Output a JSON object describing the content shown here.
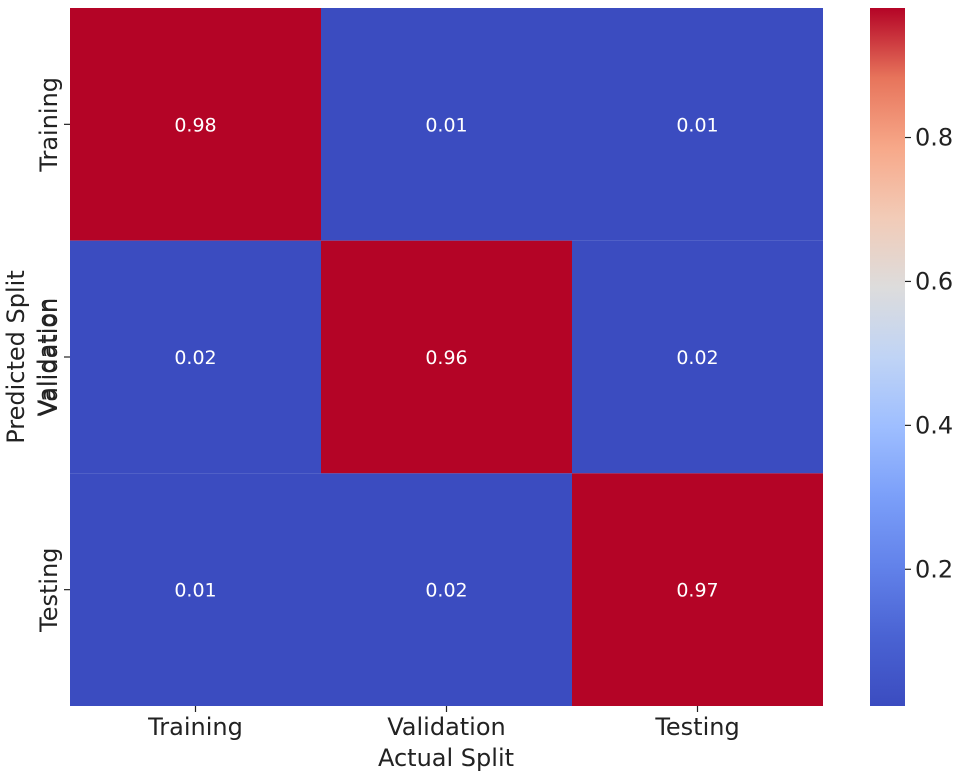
{
  "chart_data": {
    "type": "heatmap",
    "title": "",
    "xlabel": "Actual Split",
    "ylabel_lines": [
      "Predicted Split",
      "Validation"
    ],
    "x_categories": [
      "Training",
      "Validation",
      "Testing"
    ],
    "y_categories": [
      "Training",
      "Validation",
      "Testing"
    ],
    "values": [
      [
        0.98,
        0.01,
        0.01
      ],
      [
        0.02,
        0.96,
        0.02
      ],
      [
        0.01,
        0.02,
        0.97
      ]
    ],
    "value_labels": [
      [
        "0.98",
        "0.01",
        "0.01"
      ],
      [
        "0.02",
        "0.96",
        "0.02"
      ],
      [
        "0.01",
        "0.02",
        "0.97"
      ]
    ],
    "colorbar": {
      "min": 0.01,
      "max": 0.98,
      "ticks": [
        0.2,
        0.4,
        0.6,
        0.8
      ],
      "tick_labels": [
        "0.2",
        "0.4",
        "0.6",
        "0.8"
      ],
      "colormap": "coolwarm"
    },
    "colors": {
      "low": "#3b4cc0",
      "mid": "#dddddd",
      "high": "#b40426"
    }
  }
}
